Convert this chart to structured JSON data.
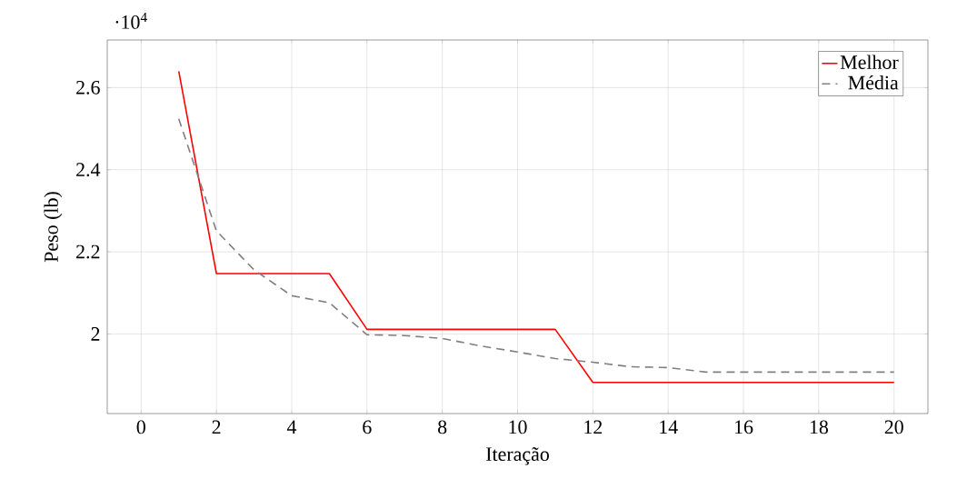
{
  "chart_data": {
    "type": "line",
    "xlabel": "Iteração",
    "ylabel": "Peso (lb)",
    "annotations": [
      "·10$^{4}$"
    ],
    "x": [
      1,
      2,
      3,
      4,
      5,
      6,
      7,
      8,
      9,
      10,
      11,
      12,
      13,
      14,
      15,
      16,
      17,
      18,
      19,
      20
    ],
    "series": [
      {
        "name": "Melhor",
        "color": "#ff0000",
        "line_style": "solid",
        "values": [
          2.64,
          2.147,
          2.147,
          2.147,
          2.147,
          2.011,
          2.011,
          2.011,
          2.011,
          2.011,
          2.011,
          1.882,
          1.882,
          1.882,
          1.882,
          1.882,
          1.882,
          1.882,
          1.882,
          1.882
        ]
      },
      {
        "name": "Média",
        "color": "#808080",
        "line_style": "dashed",
        "values": [
          2.524,
          2.251,
          2.156,
          2.093,
          2.076,
          1.998,
          1.996,
          1.989,
          1.971,
          1.956,
          1.94,
          1.931,
          1.92,
          1.918,
          1.907,
          1.907,
          1.907,
          1.907,
          1.907,
          1.907
        ]
      }
    ],
    "xlim": [
      -0.9,
      20.9
    ],
    "ylim": [
      1.806,
      2.716
    ],
    "xticks": [
      0,
      2,
      4,
      6,
      8,
      10,
      12,
      14,
      16,
      18,
      20
    ],
    "yticks": [
      2,
      2.2,
      2.4,
      2.6
    ],
    "grid": true,
    "legend": "top right",
    "marker": "none"
  }
}
